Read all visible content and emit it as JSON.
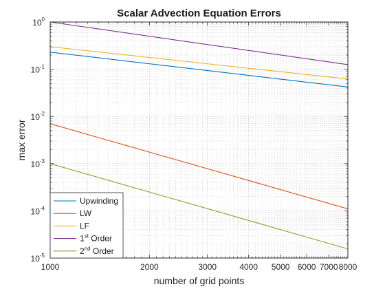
{
  "chart_data": {
    "type": "line",
    "title": "Scalar Advection Equation Errors",
    "xlabel": "number of grid points",
    "ylabel": "max error",
    "xscale": "log",
    "yscale": "log",
    "xlim": [
      1000,
      8000
    ],
    "ylim": [
      1e-05,
      1
    ],
    "grid": true,
    "minor_grid": true,
    "legend_position": "bottom-left",
    "x_ticks": [
      {
        "value": 1000,
        "label": "1000"
      },
      {
        "value": 2000,
        "label": "2000"
      },
      {
        "value": 3000,
        "label": "3000"
      },
      {
        "value": 4000,
        "label": "4000"
      },
      {
        "value": 5000,
        "label": "5000"
      },
      {
        "value": 6000,
        "label": "6000"
      },
      {
        "value": 7000,
        "label": "7000"
      },
      {
        "value": 8000,
        "label": "8000"
      }
    ],
    "y_ticks": [
      {
        "value": 1e-05,
        "base": "10",
        "exp": "-5"
      },
      {
        "value": 0.0001,
        "base": "10",
        "exp": "-4"
      },
      {
        "value": 0.001,
        "base": "10",
        "exp": "-3"
      },
      {
        "value": 0.01,
        "base": "10",
        "exp": "-2"
      },
      {
        "value": 0.1,
        "base": "10",
        "exp": "-1"
      },
      {
        "value": 1,
        "base": "10",
        "exp": "0"
      }
    ],
    "series": [
      {
        "name": "Upwinding",
        "label_main": "Upwinding",
        "label_sup": "",
        "label_rest": "",
        "color": "#0072BD",
        "x": [
          1000,
          8000
        ],
        "y": [
          0.23,
          0.042
        ]
      },
      {
        "name": "LW",
        "label_main": "LW",
        "label_sup": "",
        "label_rest": "",
        "color": "#D95319",
        "x": [
          1000,
          8000
        ],
        "y": [
          0.007,
          0.00011
        ]
      },
      {
        "name": "LF",
        "label_main": "LF",
        "label_sup": "",
        "label_rest": "",
        "color": "#EDB120",
        "x": [
          1000,
          8000
        ],
        "y": [
          0.3,
          0.062
        ]
      },
      {
        "name": "1st Order",
        "label_main": "1",
        "label_sup": "st",
        "label_rest": " Order",
        "color": "#7E2F8E",
        "x": [
          1000,
          8000
        ],
        "y": [
          1.0,
          0.125
        ]
      },
      {
        "name": "2nd Order",
        "label_main": "2",
        "label_sup": "nd",
        "label_rest": " Order",
        "color": "#77AC30",
        "x": [
          1000,
          8000
        ],
        "y": [
          0.001,
          1.56e-05
        ]
      }
    ]
  }
}
